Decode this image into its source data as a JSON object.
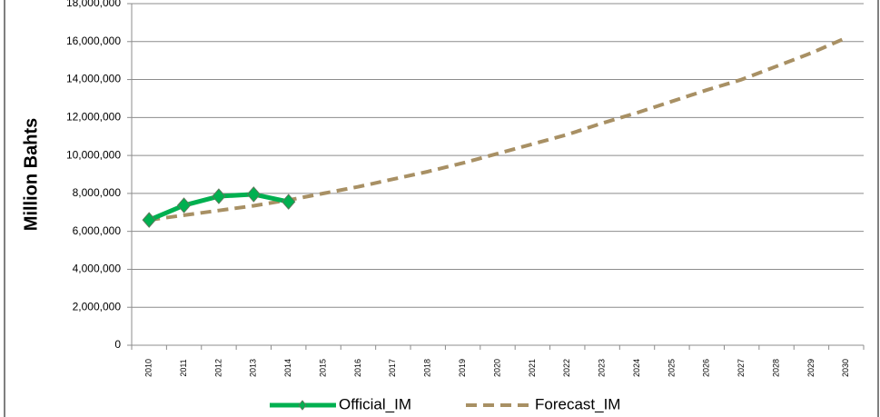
{
  "chart_data": {
    "type": "line",
    "y_label": "Million Bahts",
    "categories": [
      "2010",
      "2011",
      "2012",
      "2013",
      "2014",
      "2015",
      "2016",
      "2017",
      "2018",
      "2019",
      "2020",
      "2021",
      "2022",
      "2023",
      "2024",
      "2025",
      "2026",
      "2027",
      "2028",
      "2029",
      "2030"
    ],
    "series": [
      {
        "name": "Official_IM",
        "color": "#00b050",
        "values": [
          6600000,
          7370000,
          7850000,
          7950000,
          7560000,
          null,
          null,
          null,
          null,
          null,
          null,
          null,
          null,
          null,
          null,
          null,
          null,
          null,
          null,
          null,
          null
        ]
      },
      {
        "name": "Forecast_IM",
        "color": "#a89064",
        "dashed": true,
        "values": [
          6600000,
          6850000,
          7100000,
          7350000,
          7650000,
          8000000,
          8350000,
          8750000,
          9150000,
          9600000,
          10100000,
          10600000,
          11100000,
          11700000,
          12250000,
          12850000,
          13450000,
          14000000,
          14700000,
          15400000,
          16200000
        ]
      }
    ],
    "ylim": [
      0,
      18000000
    ],
    "yticks": [
      0,
      {
        "value": 2000000,
        "label": "2,000,000"
      },
      {
        "value": 4000000,
        "label": "4,000,000"
      },
      {
        "value": 6000000,
        "label": "6,000,000"
      },
      {
        "value": 8000000,
        "label": "8,000,000"
      },
      {
        "value": 10000000,
        "label": "10,000,000"
      },
      {
        "value": 12000000,
        "label": "12,000,000"
      },
      {
        "value": 14000000,
        "label": "14,000,000"
      },
      {
        "value": 16000000,
        "label": "16,000,000"
      },
      {
        "value": 18000000,
        "label": "18,000,000"
      }
    ],
    "grid": true,
    "legend": "bottom"
  }
}
